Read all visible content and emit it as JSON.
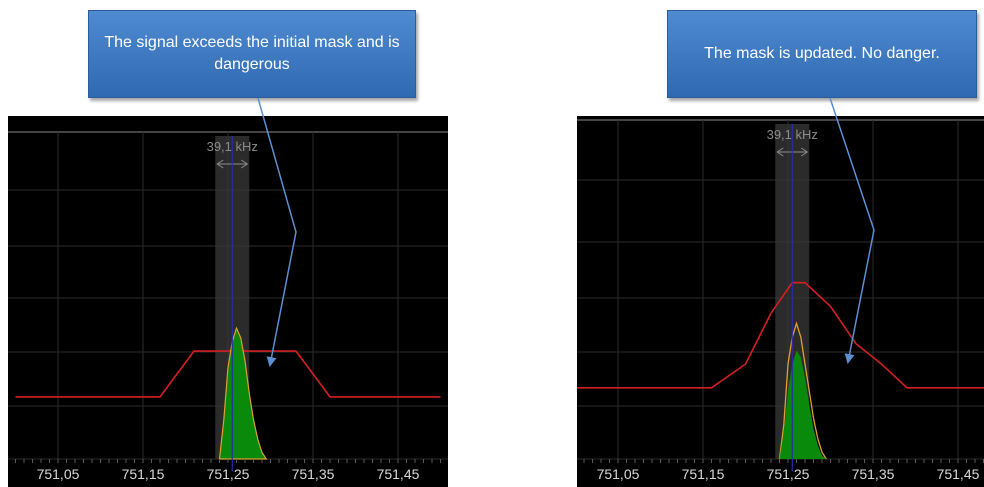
{
  "callouts": {
    "left": "The signal exceeds the initial mask and is dangerous",
    "right": "The mask is updated. No danger."
  },
  "colors": {
    "background": "#000000",
    "grid": "#2b2b2b",
    "mask": "#d42020",
    "signal_fill": "#0a8a0a",
    "signal_outline": "#e0a030",
    "marker_band": "#3a3a3a",
    "marker_line": "#2a2ab0",
    "callout": "#3f7bc4"
  },
  "chart_data": [
    {
      "type": "area",
      "panel": "left",
      "xlim": [
        751.0,
        751.5
      ],
      "ylim": [
        0,
        100
      ],
      "tick_labels": [
        "751,05",
        "751,15",
        "751,25",
        "751,35",
        "751,45"
      ],
      "tick_values": [
        751.05,
        751.15,
        751.25,
        751.35,
        751.45
      ],
      "bandwidth_label": "39,1 kHz",
      "marker": {
        "center": 751.255,
        "band": [
          751.235,
          751.275
        ]
      },
      "series": [
        {
          "role": "mask",
          "x": [
            751.0,
            751.17,
            751.21,
            751.23,
            751.33,
            751.37,
            751.5
          ],
          "y": [
            19,
            19,
            33,
            33,
            33,
            19,
            19
          ]
        },
        {
          "role": "signal",
          "x": [
            751.24,
            751.245,
            751.25,
            751.255,
            751.26,
            751.265,
            751.27,
            751.275,
            751.28,
            751.285,
            751.29,
            751.295
          ],
          "y": [
            0,
            12,
            28,
            36,
            40,
            37,
            30,
            20,
            12,
            6,
            2,
            0
          ]
        }
      ]
    },
    {
      "type": "area",
      "panel": "right",
      "xlim": [
        751.0,
        751.5
      ],
      "ylim": [
        0,
        100
      ],
      "tick_labels": [
        "751,05",
        "751,15",
        "751,25",
        "751,35",
        "751,45"
      ],
      "tick_values": [
        751.05,
        751.15,
        751.25,
        751.35,
        751.45
      ],
      "bandwidth_label": "39,1 kHz",
      "marker": {
        "center": 751.255,
        "band": [
          751.235,
          751.275
        ]
      },
      "series": [
        {
          "role": "mask",
          "x": [
            751.0,
            751.16,
            751.2,
            751.23,
            751.255,
            751.27,
            751.3,
            751.33,
            751.36,
            751.39,
            751.5
          ],
          "y": [
            21,
            21,
            28,
            43,
            52,
            52,
            45,
            34,
            28,
            21,
            21
          ]
        },
        {
          "role": "signal_outline",
          "x": [
            751.24,
            751.245,
            751.25,
            751.255,
            751.26,
            751.265,
            751.27,
            751.275,
            751.28,
            751.285,
            751.29,
            751.295
          ],
          "y": [
            0,
            10,
            28,
            36,
            40,
            36,
            28,
            20,
            12,
            6,
            2,
            0
          ]
        },
        {
          "role": "signal",
          "x": [
            751.24,
            751.245,
            751.25,
            751.255,
            751.26,
            751.265,
            751.27,
            751.275,
            751.28,
            751.285,
            751.29,
            751.295
          ],
          "y": [
            0,
            8,
            20,
            28,
            32,
            30,
            24,
            16,
            9,
            4,
            1,
            0
          ]
        }
      ]
    }
  ]
}
